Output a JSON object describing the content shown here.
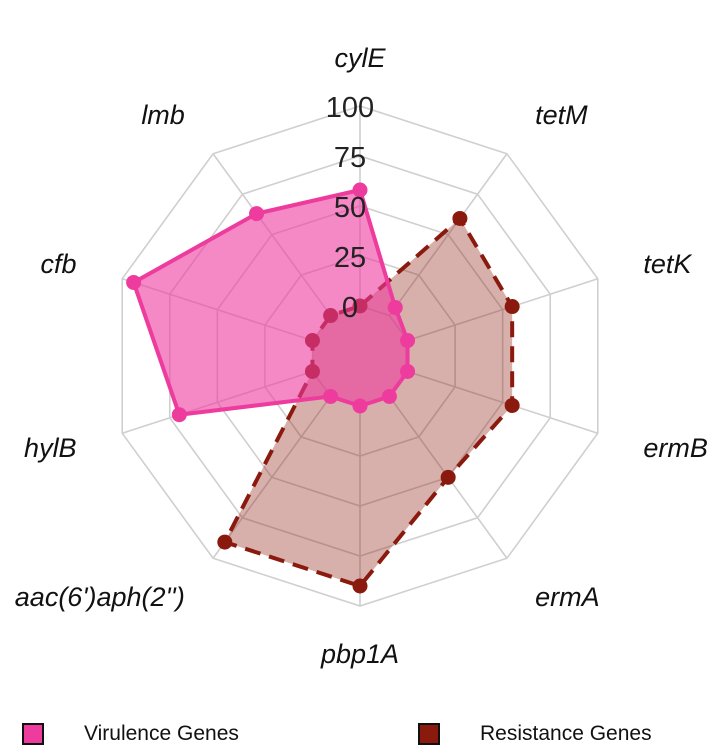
{
  "chart_data": {
    "type": "radar",
    "axes": [
      "cylE",
      "tetM",
      "tetK",
      "ermB",
      "ermA",
      "pbp1A",
      "aac(6')aph(2'')",
      "hylB",
      "cfb",
      "lmb"
    ],
    "rlim": [
      0,
      100
    ],
    "ticks": [
      "0",
      "25",
      "50",
      "75",
      "100"
    ],
    "tick_values": [
      0,
      25,
      50,
      75,
      100
    ],
    "grid": true,
    "legend_position": "bottom",
    "series": [
      {
        "name": "Virulence Genes",
        "values": [
          58,
          5,
          0,
          0,
          0,
          0,
          0,
          70,
          94,
          63
        ],
        "fill": "#ee3b9e",
        "stroke": "#ee3b9e",
        "line_style": "solid"
      },
      {
        "name": "Resistance Genes",
        "values": [
          0,
          60,
          55,
          55,
          50,
          90,
          90,
          0,
          0,
          0
        ],
        "fill": "#8b1a0e",
        "stroke": "#8b1a0e",
        "line_style": "dashed"
      }
    ]
  }
}
